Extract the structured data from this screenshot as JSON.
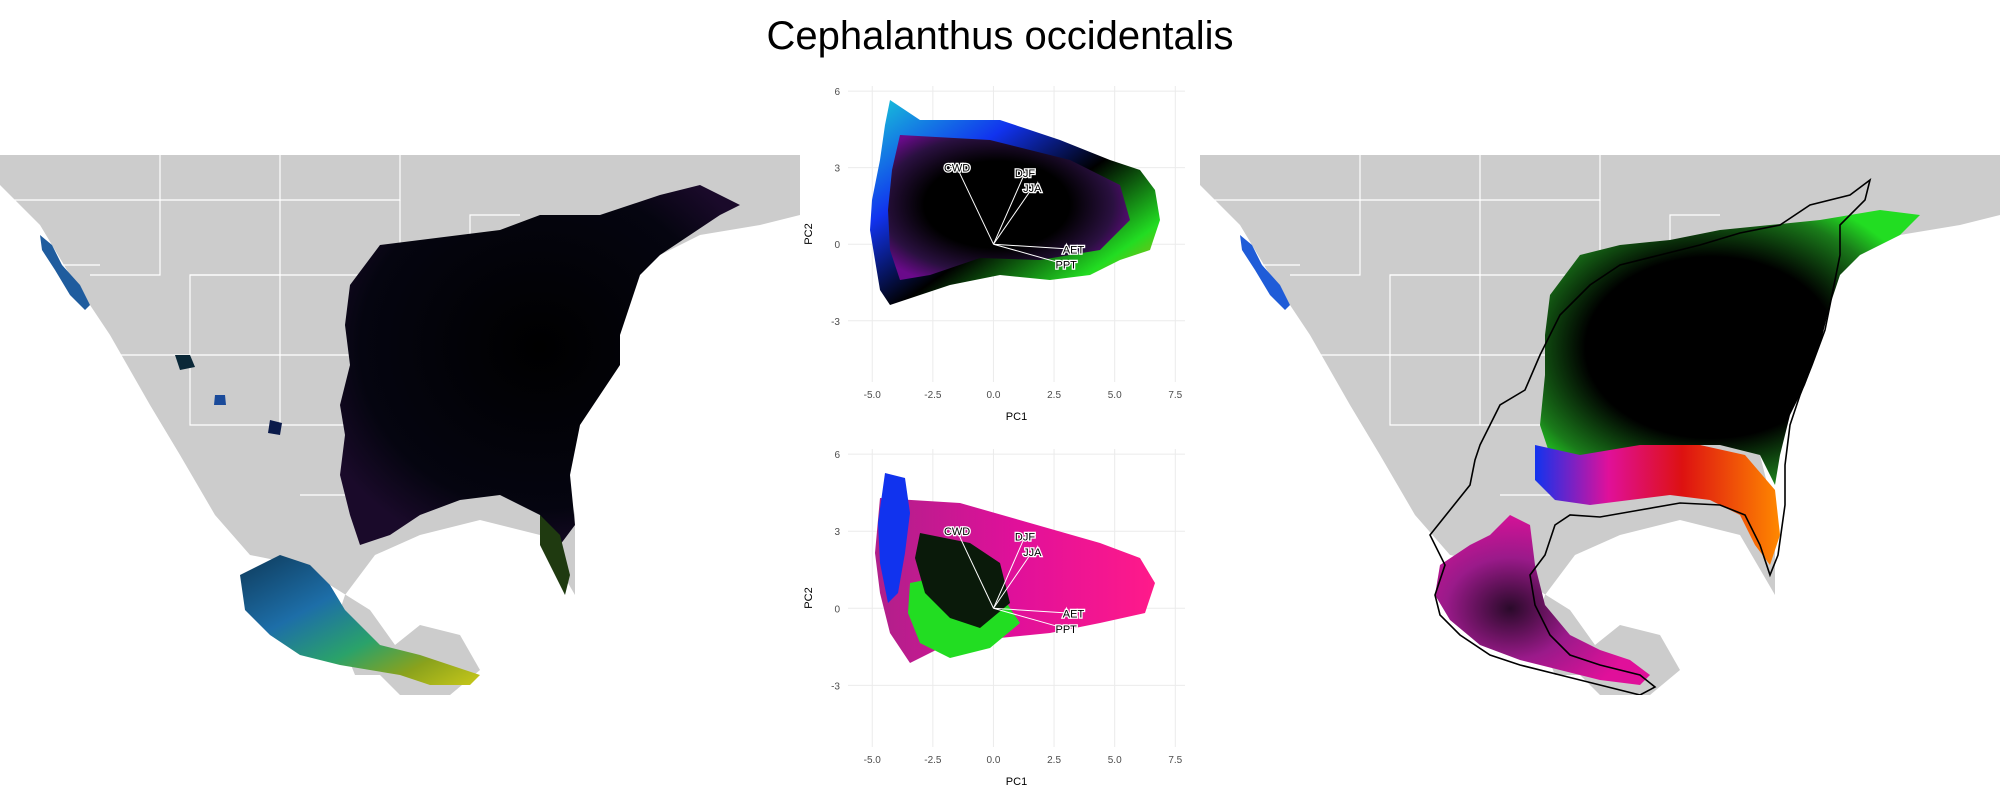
{
  "title": "Cephalanthus occidentalis",
  "panels": {
    "left_map": "map-colored-by-climate-pca",
    "right_map": "map-smoothed-climate-pca-with-range-outline",
    "top_biplot": "pca-biplot-climate-color-gradient",
    "bottom_biplot": "pca-biplot-occurrence-points"
  },
  "colors": {
    "land": "#cccccc",
    "borders": "#ffffff",
    "grid": "#ebebeb",
    "magenta": "#e0109a",
    "green": "#22dd22",
    "blue": "#1133ee",
    "cyan": "#18c8d8",
    "orange": "#ff8800",
    "red": "#dd1111",
    "black": "#000000"
  },
  "chart_data": [
    {
      "type": "scatter",
      "xlabel": "PC1",
      "ylabel": "PC2",
      "xticks": [
        "-5.0",
        "-2.5",
        "0.0",
        "2.5",
        "5.0",
        "7.5"
      ],
      "yticks": [
        "-3",
        "0",
        "3",
        "6"
      ],
      "xlim": [
        -6.0,
        7.9
      ],
      "ylim": [
        -5.4,
        6.2
      ],
      "grid": true,
      "loadings": [
        {
          "label": "CWD",
          "x": -1.5,
          "y": 3.0
        },
        {
          "label": "DJF",
          "x": 1.3,
          "y": 2.8
        },
        {
          "label": "JJA",
          "x": 1.6,
          "y": 2.2
        },
        {
          "label": "AET",
          "x": 3.3,
          "y": -0.2
        },
        {
          "label": "PPT",
          "x": 3.0,
          "y": -0.8
        }
      ]
    },
    {
      "type": "scatter",
      "xlabel": "PC1",
      "ylabel": "PC2",
      "xticks": [
        "-5.0",
        "-2.5",
        "0.0",
        "2.5",
        "5.0",
        "7.5"
      ],
      "yticks": [
        "-3",
        "0",
        "3",
        "6"
      ],
      "xlim": [
        -6.0,
        7.9
      ],
      "ylim": [
        -5.4,
        6.2
      ],
      "grid": true,
      "loadings": [
        {
          "label": "CWD",
          "x": -1.5,
          "y": 3.0
        },
        {
          "label": "DJF",
          "x": 1.3,
          "y": 2.8
        },
        {
          "label": "JJA",
          "x": 1.6,
          "y": 2.2
        },
        {
          "label": "AET",
          "x": 3.3,
          "y": -0.2
        },
        {
          "label": "PPT",
          "x": 3.0,
          "y": -0.8
        }
      ]
    }
  ]
}
